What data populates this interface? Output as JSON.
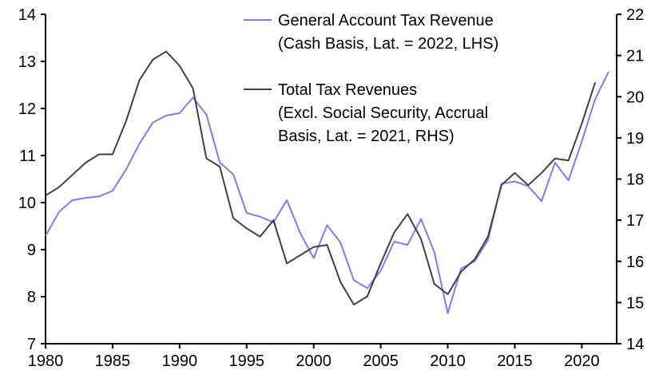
{
  "chart_data": {
    "type": "line",
    "title": "",
    "xlabel": "",
    "ylabel_left": "",
    "ylabel_right": "",
    "xlim": [
      1980,
      2022
    ],
    "ylim_left": [
      7,
      14
    ],
    "ylim_right": [
      14,
      22
    ],
    "x_ticks": [
      1980,
      1985,
      1990,
      1995,
      2000,
      2005,
      2010,
      2015,
      2020
    ],
    "y_ticks_left": [
      7,
      8,
      9,
      10,
      11,
      12,
      13,
      14
    ],
    "y_ticks_right": [
      14,
      15,
      16,
      17,
      18,
      19,
      20,
      21,
      22
    ],
    "grid": false,
    "legend_placement": "top-right",
    "series": [
      {
        "name": "General Account Tax Revenue",
        "legend_lines": [
          "General Account Tax Revenue",
          "(Cash Basis, Lat. = 2022, LHS)"
        ],
        "axis": "left",
        "color": "#7b7bff",
        "x": [
          1980,
          1981,
          1982,
          1983,
          1984,
          1985,
          1986,
          1987,
          1988,
          1989,
          1990,
          1991,
          1992,
          1993,
          1994,
          1995,
          1996,
          1997,
          1998,
          1999,
          2000,
          2001,
          2002,
          2003,
          2004,
          2005,
          2006,
          2007,
          2008,
          2009,
          2010,
          2011,
          2012,
          2013,
          2014,
          2015,
          2016,
          2017,
          2018,
          2019,
          2020,
          2021,
          2022
        ],
        "values": [
          9.29,
          9.8,
          10.05,
          10.1,
          10.13,
          10.25,
          10.7,
          11.25,
          11.7,
          11.85,
          11.9,
          12.23,
          11.87,
          10.85,
          10.6,
          9.78,
          9.7,
          9.58,
          10.05,
          9.35,
          8.82,
          9.52,
          9.15,
          8.35,
          8.18,
          8.55,
          9.17,
          9.1,
          9.65,
          8.95,
          7.65,
          8.6,
          8.75,
          9.2,
          10.4,
          10.45,
          10.35,
          10.03,
          10.85,
          10.47,
          11.3,
          12.2,
          12.78
        ]
      },
      {
        "name": "Total Tax Revenues",
        "legend_lines": [
          "Total Tax Revenues",
          "(Excl. Social Security, Accrual",
          "Basis, Lat. = 2021, RHS)"
        ],
        "axis": "right",
        "color": "#404040",
        "x": [
          1980,
          1981,
          1982,
          1983,
          1984,
          1985,
          1986,
          1987,
          1988,
          1989,
          1990,
          1991,
          1992,
          1993,
          1994,
          1995,
          1996,
          1997,
          1998,
          1999,
          2000,
          2001,
          2002,
          2003,
          2004,
          2005,
          2006,
          2007,
          2008,
          2009,
          2010,
          2011,
          2012,
          2013,
          2014,
          2015,
          2016,
          2017,
          2018,
          2019,
          2020,
          2021
        ],
        "values": [
          17.6,
          17.8,
          18.1,
          18.4,
          18.6,
          18.6,
          19.4,
          20.4,
          20.9,
          21.1,
          20.75,
          20.2,
          18.5,
          18.3,
          17.05,
          16.8,
          16.6,
          17.0,
          15.95,
          16.15,
          16.35,
          16.4,
          15.5,
          14.95,
          15.15,
          15.95,
          16.7,
          17.15,
          16.55,
          15.45,
          15.2,
          15.75,
          16.05,
          16.6,
          17.85,
          18.15,
          17.85,
          18.15,
          18.5,
          18.45,
          19.35,
          20.35
        ]
      }
    ]
  }
}
